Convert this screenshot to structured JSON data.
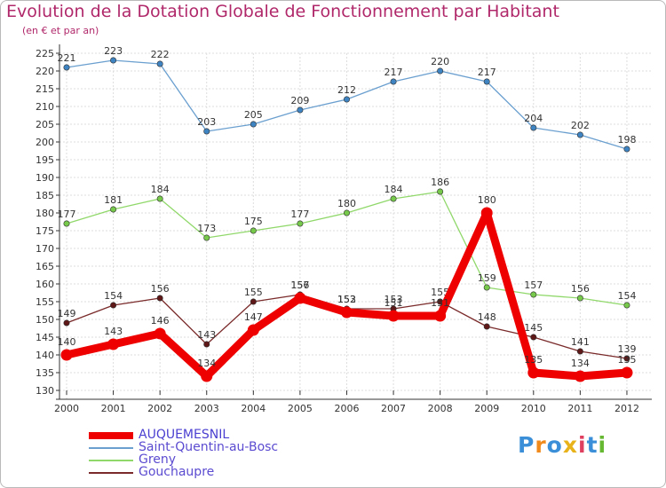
{
  "chart_data": {
    "type": "line",
    "title": "Evolution de la Dotation Globale de Fonctionnement par Habitant",
    "subtitle": "(en € et par an)",
    "xlabel": "",
    "ylabel": "",
    "x": [
      "2000",
      "2001",
      "2002",
      "2003",
      "2004",
      "2005",
      "2006",
      "2007",
      "2008",
      "2009",
      "2010",
      "2011",
      "2012"
    ],
    "ylim": [
      130,
      225
    ],
    "ytick_step": 5,
    "grid": true,
    "legend_position": "bottom-left",
    "series": [
      {
        "name": "Saint-Quentin-au-Bosc",
        "color": "#6a9fcf",
        "marker_color": "#3f84c2",
        "emphasis": false,
        "values": [
          221,
          223,
          222,
          203,
          205,
          209,
          212,
          217,
          220,
          217,
          204,
          202,
          198
        ]
      },
      {
        "name": "Greny",
        "color": "#90d86a",
        "marker_color": "#76c94a",
        "emphasis": false,
        "values": [
          177,
          181,
          184,
          173,
          175,
          177,
          180,
          184,
          186,
          159,
          157,
          156,
          154
        ]
      },
      {
        "name": "Gouchaupre",
        "color": "#7a2a2a",
        "marker_color": "#5e1818",
        "emphasis": false,
        "values": [
          149,
          154,
          156,
          143,
          155,
          157,
          153,
          153,
          155,
          148,
          145,
          141,
          139
        ]
      },
      {
        "name": "AUQUEMESNIL",
        "color": "#ee0000",
        "marker_color": "#ee0000",
        "emphasis": true,
        "values": [
          140,
          143,
          146,
          134,
          147,
          156,
          152,
          151,
          151,
          180,
          135,
          134,
          135
        ]
      }
    ],
    "legend_order": [
      "AUQUEMESNIL",
      "Saint-Quentin-au-Bosc",
      "Greny",
      "Gouchaupre"
    ]
  },
  "logo": {
    "letters": [
      "P",
      "r",
      "o",
      "x",
      "i",
      "t",
      "i"
    ],
    "colors": [
      "#3a8fd8",
      "#f08a1c",
      "#3a8fd8",
      "#e8b21a",
      "#e04060",
      "#3a8fd8",
      "#66b832"
    ]
  }
}
